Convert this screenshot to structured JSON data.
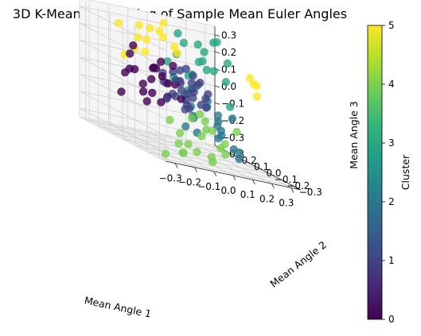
{
  "chart_data": {
    "type": "scatter",
    "title": "3D K-Means Clustering of Sample Mean Euler Angles",
    "xlabel": "Mean Angle 1",
    "ylabel": "Mean Angle 2",
    "zlabel": "Mean Angle 3",
    "xticks": [
      "−0.3",
      "−0.2",
      "−0.1",
      "0.0",
      "0.1",
      "0.2",
      "0.3"
    ],
    "yticks": [
      "−0.3",
      "−0.2",
      "−0.1",
      "0.0",
      "0.1",
      "0.2",
      "0.3"
    ],
    "zticks": [
      "−0.3",
      "−0.2",
      "−0.1",
      "0.0",
      "0.1",
      "0.2",
      "0.3"
    ],
    "xlim": [
      -0.35,
      0.35
    ],
    "ylim": [
      -0.35,
      0.35
    ],
    "zlim": [
      -0.35,
      0.35
    ],
    "colorbar": {
      "label": "Cluster",
      "ticks": [
        "0",
        "1",
        "2",
        "3",
        "4",
        "5"
      ],
      "range": [
        0,
        5
      ],
      "colormap": "viridis"
    },
    "grid": true,
    "points": [
      {
        "x": -0.28,
        "y": 0.05,
        "z": 0.15,
        "cluster": 0
      },
      {
        "x": -0.3,
        "y": -0.02,
        "z": 0.08,
        "cluster": 0
      },
      {
        "x": -0.25,
        "y": 0.1,
        "z": 0.05,
        "cluster": 0
      },
      {
        "x": -0.22,
        "y": -0.05,
        "z": 0.12,
        "cluster": 0
      },
      {
        "x": -0.2,
        "y": 0.15,
        "z": 0.18,
        "cluster": 0
      },
      {
        "x": -0.26,
        "y": -0.1,
        "z": -0.02,
        "cluster": 0
      },
      {
        "x": -0.18,
        "y": 0.02,
        "z": 0.1,
        "cluster": 0
      },
      {
        "x": -0.15,
        "y": 0.08,
        "z": 0.02,
        "cluster": 0
      },
      {
        "x": -0.19,
        "y": -0.12,
        "z": 0.06,
        "cluster": 0
      },
      {
        "x": -0.12,
        "y": 0.05,
        "z": 0.14,
        "cluster": 0
      },
      {
        "x": -0.23,
        "y": 0.02,
        "z": -0.05,
        "cluster": 0
      },
      {
        "x": -0.17,
        "y": -0.03,
        "z": -0.08,
        "cluster": 0
      },
      {
        "x": -0.1,
        "y": 0.12,
        "z": 0.08,
        "cluster": 0
      },
      {
        "x": -0.14,
        "y": -0.08,
        "z": 0.16,
        "cluster": 0
      },
      {
        "x": -0.28,
        "y": 0.12,
        "z": -0.1,
        "cluster": 0
      },
      {
        "x": -0.21,
        "y": 0.2,
        "z": 0.0,
        "cluster": 0
      },
      {
        "x": -0.09,
        "y": -0.02,
        "z": 0.04,
        "cluster": 0
      },
      {
        "x": -0.13,
        "y": 0.18,
        "z": -0.04,
        "cluster": 0
      },
      {
        "x": -0.24,
        "y": -0.15,
        "z": 0.1,
        "cluster": 0
      },
      {
        "x": -0.16,
        "y": 0.1,
        "z": -0.12,
        "cluster": 0
      },
      {
        "x": -0.08,
        "y": 0.06,
        "z": -0.06,
        "cluster": 0
      },
      {
        "x": -0.11,
        "y": -0.1,
        "z": -0.02,
        "cluster": 0
      },
      {
        "x": -0.05,
        "y": 0.0,
        "z": 0.05,
        "cluster": 1
      },
      {
        "x": -0.02,
        "y": 0.04,
        "z": 0.0,
        "cluster": 1
      },
      {
        "x": 0.0,
        "y": -0.03,
        "z": 0.02,
        "cluster": 1
      },
      {
        "x": -0.04,
        "y": 0.08,
        "z": -0.04,
        "cluster": 1
      },
      {
        "x": 0.02,
        "y": 0.02,
        "z": 0.06,
        "cluster": 1
      },
      {
        "x": -0.06,
        "y": -0.06,
        "z": -0.03,
        "cluster": 1
      },
      {
        "x": 0.03,
        "y": 0.07,
        "z": -0.02,
        "cluster": 1
      },
      {
        "x": -0.01,
        "y": -0.08,
        "z": 0.08,
        "cluster": 1
      },
      {
        "x": 0.05,
        "y": -0.01,
        "z": -0.05,
        "cluster": 1
      },
      {
        "x": -0.07,
        "y": 0.03,
        "z": 0.1,
        "cluster": 1
      },
      {
        "x": 0.01,
        "y": 0.1,
        "z": 0.04,
        "cluster": 1
      },
      {
        "x": -0.03,
        "y": -0.04,
        "z": -0.08,
        "cluster": 1
      },
      {
        "x": 0.04,
        "y": 0.04,
        "z": 0.1,
        "cluster": 1
      },
      {
        "x": -0.08,
        "y": 0.09,
        "z": 0.02,
        "cluster": 1
      },
      {
        "x": 0.06,
        "y": -0.05,
        "z": 0.03,
        "cluster": 1
      },
      {
        "x": -0.02,
        "y": 0.01,
        "z": -0.1,
        "cluster": 1
      },
      {
        "x": 0.0,
        "y": 0.12,
        "z": -0.06,
        "cluster": 1
      },
      {
        "x": -0.05,
        "y": -0.1,
        "z": 0.0,
        "cluster": 1
      },
      {
        "x": 0.07,
        "y": 0.03,
        "z": 0.07,
        "cluster": 1
      },
      {
        "x": -0.09,
        "y": 0.05,
        "z": -0.07,
        "cluster": 1
      },
      {
        "x": 0.02,
        "y": -0.1,
        "z": -0.04,
        "cluster": 1
      },
      {
        "x": -0.04,
        "y": 0.02,
        "z": 0.12,
        "cluster": 1
      },
      {
        "x": 0.04,
        "y": 0.09,
        "z": -0.09,
        "cluster": 1
      },
      {
        "x": -0.06,
        "y": 0.13,
        "z": 0.06,
        "cluster": 1
      },
      {
        "x": 0.08,
        "y": 0.0,
        "z": -0.01,
        "cluster": 1
      },
      {
        "x": -0.1,
        "y": -0.04,
        "z": 0.07,
        "cluster": 1
      },
      {
        "x": 0.01,
        "y": 0.05,
        "z": 0.13,
        "cluster": 1
      },
      {
        "x": -0.03,
        "y": 0.15,
        "z": 0.0,
        "cluster": 1
      },
      {
        "x": 0.06,
        "y": 0.08,
        "z": 0.01,
        "cluster": 1
      },
      {
        "x": 0.1,
        "y": 0.02,
        "z": -0.06,
        "cluster": 2
      },
      {
        "x": 0.08,
        "y": 0.12,
        "z": -0.1,
        "cluster": 2
      },
      {
        "x": 0.12,
        "y": -0.04,
        "z": -0.12,
        "cluster": 2
      },
      {
        "x": 0.05,
        "y": 0.05,
        "z": -0.15,
        "cluster": 2
      },
      {
        "x": 0.14,
        "y": 0.08,
        "z": -0.04,
        "cluster": 2
      },
      {
        "x": 0.09,
        "y": -0.08,
        "z": -0.14,
        "cluster": 2
      },
      {
        "x": 0.16,
        "y": 0.0,
        "z": -0.18,
        "cluster": 2
      },
      {
        "x": 0.11,
        "y": 0.15,
        "z": -0.16,
        "cluster": 2
      },
      {
        "x": 0.18,
        "y": -0.06,
        "z": -0.08,
        "cluster": 2
      },
      {
        "x": 0.07,
        "y": -0.12,
        "z": -0.2,
        "cluster": 2
      },
      {
        "x": 0.2,
        "y": 0.06,
        "z": -0.22,
        "cluster": 2
      },
      {
        "x": 0.13,
        "y": -0.15,
        "z": -0.24,
        "cluster": 2
      },
      {
        "x": 0.22,
        "y": 0.12,
        "z": -0.12,
        "cluster": 2
      },
      {
        "x": 0.15,
        "y": 0.18,
        "z": -0.26,
        "cluster": 2
      },
      {
        "x": 0.24,
        "y": -0.02,
        "z": -0.28,
        "cluster": 2
      },
      {
        "x": 0.04,
        "y": 0.1,
        "z": -0.22,
        "cluster": 2
      },
      {
        "x": 0.19,
        "y": -0.1,
        "z": -0.3,
        "cluster": 2
      },
      {
        "x": 0.1,
        "y": 0.2,
        "z": -0.06,
        "cluster": 3
      },
      {
        "x": 0.15,
        "y": 0.25,
        "z": 0.05,
        "cluster": 3
      },
      {
        "x": 0.2,
        "y": 0.18,
        "z": 0.12,
        "cluster": 3
      },
      {
        "x": 0.25,
        "y": 0.28,
        "z": 0.2,
        "cluster": 3
      },
      {
        "x": 0.12,
        "y": 0.3,
        "z": 0.15,
        "cluster": 3
      },
      {
        "x": 0.18,
        "y": 0.22,
        "z": 0.25,
        "cluster": 3
      },
      {
        "x": 0.28,
        "y": 0.15,
        "z": 0.08,
        "cluster": 3
      },
      {
        "x": 0.08,
        "y": 0.26,
        "z": 0.02,
        "cluster": 3
      },
      {
        "x": 0.22,
        "y": 0.3,
        "z": -0.02,
        "cluster": 3
      },
      {
        "x": 0.05,
        "y": 0.18,
        "z": 0.3,
        "cluster": 3
      },
      {
        "x": 0.14,
        "y": 0.12,
        "z": 0.18,
        "cluster": 3
      },
      {
        "x": 0.26,
        "y": 0.22,
        "z": 0.28,
        "cluster": 3
      },
      {
        "x": 0.3,
        "y": 0.28,
        "z": 0.1,
        "cluster": 3
      },
      {
        "x": 0.17,
        "y": 0.32,
        "z": 0.22,
        "cluster": 3
      },
      {
        "x": 0.11,
        "y": 0.16,
        "z": 0.08,
        "cluster": 3
      },
      {
        "x": 0.27,
        "y": 0.1,
        "z": -0.05,
        "cluster": 3
      },
      {
        "x": 0.21,
        "y": 0.26,
        "z": 0.14,
        "cluster": 3
      },
      {
        "x": 0.32,
        "y": 0.2,
        "z": 0.18,
        "cluster": 3
      },
      {
        "x": 0.06,
        "y": 0.28,
        "z": 0.1,
        "cluster": 3
      },
      {
        "x": 0.24,
        "y": 0.16,
        "z": 0.3,
        "cluster": 3
      },
      {
        "x": 0.13,
        "y": 0.22,
        "z": -0.03,
        "cluster": 3
      },
      {
        "x": -0.05,
        "y": -0.2,
        "z": -0.1,
        "cluster": 4
      },
      {
        "x": -0.1,
        "y": -0.25,
        "z": -0.18,
        "cluster": 4
      },
      {
        "x": -0.02,
        "y": -0.28,
        "z": -0.22,
        "cluster": 4
      },
      {
        "x": -0.15,
        "y": -0.22,
        "z": -0.25,
        "cluster": 4
      },
      {
        "x": -0.08,
        "y": -0.3,
        "z": -0.28,
        "cluster": 4
      },
      {
        "x": 0.0,
        "y": -0.18,
        "z": -0.15,
        "cluster": 4
      },
      {
        "x": -0.2,
        "y": -0.26,
        "z": -0.3,
        "cluster": 4
      },
      {
        "x": -0.12,
        "y": -0.32,
        "z": -0.12,
        "cluster": 4
      },
      {
        "x": 0.03,
        "y": -0.24,
        "z": -0.26,
        "cluster": 4
      },
      {
        "x": -0.18,
        "y": -0.2,
        "z": -0.2,
        "cluster": 4
      },
      {
        "x": -0.06,
        "y": -0.15,
        "z": -0.3,
        "cluster": 4
      },
      {
        "x": -0.25,
        "y": -0.3,
        "z": -0.24,
        "cluster": 4
      },
      {
        "x": -0.03,
        "y": -0.33,
        "z": -0.18,
        "cluster": 4
      },
      {
        "x": -0.14,
        "y": -0.16,
        "z": -0.32,
        "cluster": 4
      },
      {
        "x": 0.05,
        "y": -0.3,
        "z": -0.1,
        "cluster": 4
      },
      {
        "x": -0.22,
        "y": -0.18,
        "z": -0.14,
        "cluster": 4
      },
      {
        "x": -0.09,
        "y": -0.22,
        "z": -0.06,
        "cluster": 4
      },
      {
        "x": -0.28,
        "y": -0.24,
        "z": -0.33,
        "cluster": 4
      },
      {
        "x": -0.01,
        "y": -0.2,
        "z": -0.33,
        "cluster": 4
      },
      {
        "x": -0.17,
        "y": -0.28,
        "z": -0.08,
        "cluster": 4
      },
      {
        "x": -0.1,
        "y": 0.2,
        "z": 0.22,
        "cluster": 5
      },
      {
        "x": -0.05,
        "y": 0.25,
        "z": 0.28,
        "cluster": 5
      },
      {
        "x": -0.15,
        "y": 0.18,
        "z": 0.3,
        "cluster": 5
      },
      {
        "x": 0.0,
        "y": 0.22,
        "z": 0.25,
        "cluster": 5
      },
      {
        "x": -0.08,
        "y": 0.3,
        "z": 0.2,
        "cluster": 5
      },
      {
        "x": 0.04,
        "y": 0.28,
        "z": 0.32,
        "cluster": 5
      },
      {
        "x": -0.12,
        "y": 0.26,
        "z": 0.14,
        "cluster": 5
      },
      {
        "x": 0.02,
        "y": 0.16,
        "z": 0.22,
        "cluster": 5
      },
      {
        "x": -0.18,
        "y": 0.3,
        "z": 0.26,
        "cluster": 5
      },
      {
        "x": -0.03,
        "y": 0.32,
        "z": 0.12,
        "cluster": 5
      },
      {
        "x": 0.06,
        "y": 0.2,
        "z": 0.18,
        "cluster": 5
      },
      {
        "x": -0.2,
        "y": 0.22,
        "z": 0.1,
        "cluster": 5
      },
      {
        "x": 0.2,
        "y": -0.2,
        "z": 0.18,
        "cluster": 5
      },
      {
        "x": 0.25,
        "y": -0.15,
        "z": 0.1,
        "cluster": 5
      },
      {
        "x": 0.15,
        "y": -0.25,
        "z": 0.22,
        "cluster": 5
      },
      {
        "x": 0.28,
        "y": -0.1,
        "z": 0.15,
        "cluster": 5
      },
      {
        "x": -0.07,
        "y": 0.14,
        "z": 0.3,
        "cluster": 5
      }
    ]
  }
}
